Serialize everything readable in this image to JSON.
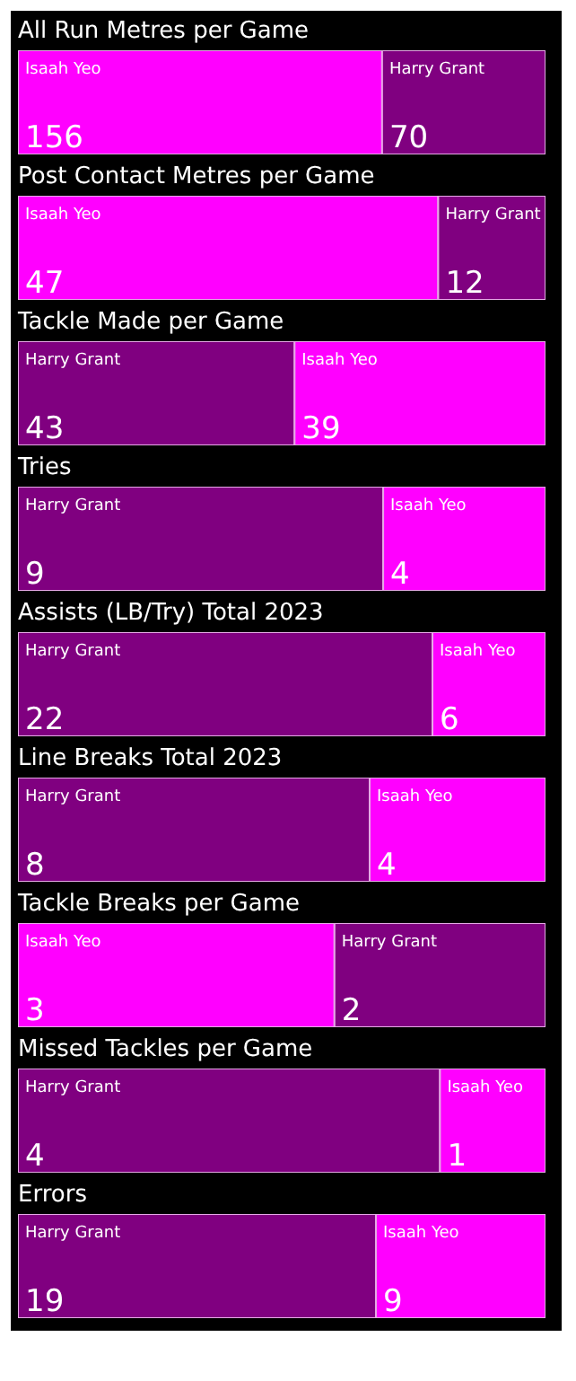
{
  "chart_data": [
    {
      "type": "bar",
      "title": "All Run Metres per Game",
      "orientation": "horizontal",
      "stacked": true,
      "categories": [
        null
      ],
      "data_labels": true,
      "series": [
        {
          "name": "Isaah Yeo",
          "color": "#ff00ff",
          "values": [
            156
          ]
        },
        {
          "name": "Harry Grant",
          "color": "#800080",
          "values": [
            70
          ]
        }
      ]
    },
    {
      "type": "bar",
      "title": "Post Contact Metres per Game",
      "orientation": "horizontal",
      "stacked": true,
      "categories": [
        null
      ],
      "data_labels": true,
      "series": [
        {
          "name": "Isaah Yeo",
          "color": "#ff00ff",
          "values": [
            47
          ]
        },
        {
          "name": "Harry Grant",
          "color": "#800080",
          "values": [
            12
          ]
        }
      ]
    },
    {
      "type": "bar",
      "title": "Tackle Made per Game",
      "orientation": "horizontal",
      "stacked": true,
      "categories": [
        null
      ],
      "data_labels": true,
      "series": [
        {
          "name": "Harry Grant",
          "color": "#800080",
          "values": [
            43
          ]
        },
        {
          "name": "Isaah Yeo",
          "color": "#ff00ff",
          "values": [
            39
          ]
        }
      ]
    },
    {
      "type": "bar",
      "title": "Tries",
      "orientation": "horizontal",
      "stacked": true,
      "categories": [
        null
      ],
      "data_labels": true,
      "series": [
        {
          "name": "Harry Grant",
          "color": "#800080",
          "values": [
            9
          ]
        },
        {
          "name": "Isaah Yeo",
          "color": "#ff00ff",
          "values": [
            4
          ]
        }
      ]
    },
    {
      "type": "bar",
      "title": "Assists (LB/Try) Total 2023",
      "orientation": "horizontal",
      "stacked": true,
      "categories": [
        null
      ],
      "data_labels": true,
      "series": [
        {
          "name": "Harry Grant",
          "color": "#800080",
          "values": [
            22
          ]
        },
        {
          "name": "Isaah Yeo",
          "color": "#ff00ff",
          "values": [
            6
          ]
        }
      ]
    },
    {
      "type": "bar",
      "title": "Line Breaks Total 2023",
      "orientation": "horizontal",
      "stacked": true,
      "categories": [
        null
      ],
      "data_labels": true,
      "series": [
        {
          "name": "Harry Grant",
          "color": "#800080",
          "values": [
            8
          ]
        },
        {
          "name": "Isaah Yeo",
          "color": "#ff00ff",
          "values": [
            4
          ]
        }
      ]
    },
    {
      "type": "bar",
      "title": "Tackle Breaks per Game",
      "orientation": "horizontal",
      "stacked": true,
      "categories": [
        null
      ],
      "data_labels": true,
      "series": [
        {
          "name": "Isaah Yeo",
          "color": "#ff00ff",
          "values": [
            3
          ]
        },
        {
          "name": "Harry Grant",
          "color": "#800080",
          "values": [
            2
          ]
        }
      ]
    },
    {
      "type": "bar",
      "title": "Missed Tackles per Game",
      "orientation": "horizontal",
      "stacked": true,
      "categories": [
        null
      ],
      "data_labels": true,
      "series": [
        {
          "name": "Harry Grant",
          "color": "#800080",
          "values": [
            4
          ]
        },
        {
          "name": "Isaah Yeo",
          "color": "#ff00ff",
          "values": [
            1
          ]
        }
      ]
    },
    {
      "type": "bar",
      "title": "Errors",
      "orientation": "horizontal",
      "stacked": true,
      "categories": [
        null
      ],
      "data_labels": true,
      "series": [
        {
          "name": "Harry Grant",
          "color": "#800080",
          "values": [
            19
          ]
        },
        {
          "name": "Isaah Yeo",
          "color": "#ff00ff",
          "values": [
            9
          ]
        }
      ]
    }
  ]
}
